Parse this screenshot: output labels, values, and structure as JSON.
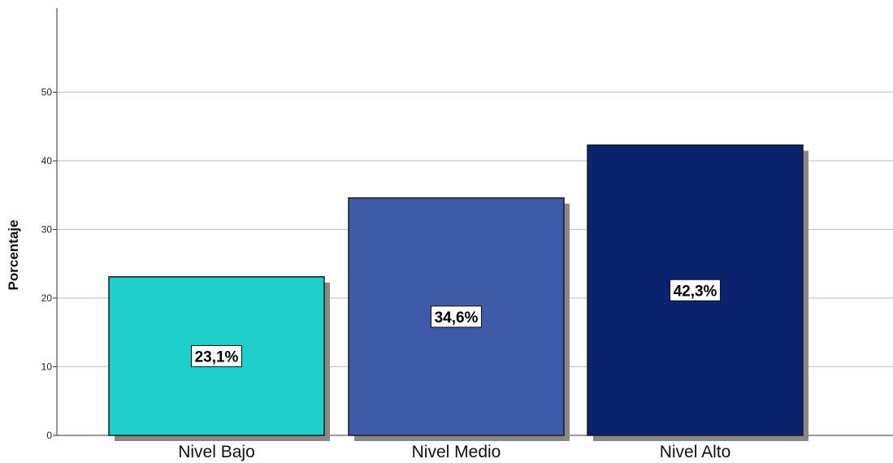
{
  "chart_data": {
    "type": "bar",
    "title": "",
    "xlabel": "",
    "ylabel": "Porcentaje",
    "categories": [
      "Nivel Bajo",
      "Nivel Medio",
      "Nivel Alto"
    ],
    "values": [
      23.1,
      34.6,
      42.3
    ],
    "data_labels": [
      "23,1%",
      "34,6%",
      "42,3%"
    ],
    "ylim": [
      0,
      60
    ],
    "yticks": [
      0,
      10,
      20,
      30,
      40,
      50
    ],
    "ytick_labels": [
      "0",
      "10",
      "20",
      "30",
      "40",
      "50"
    ],
    "grid": true,
    "legend": "none",
    "colors": [
      "#1ecfcb",
      "#3f5aa8",
      "#0b236f"
    ],
    "shadow_color": "#888888",
    "grid_color": "#c8c8c8"
  }
}
